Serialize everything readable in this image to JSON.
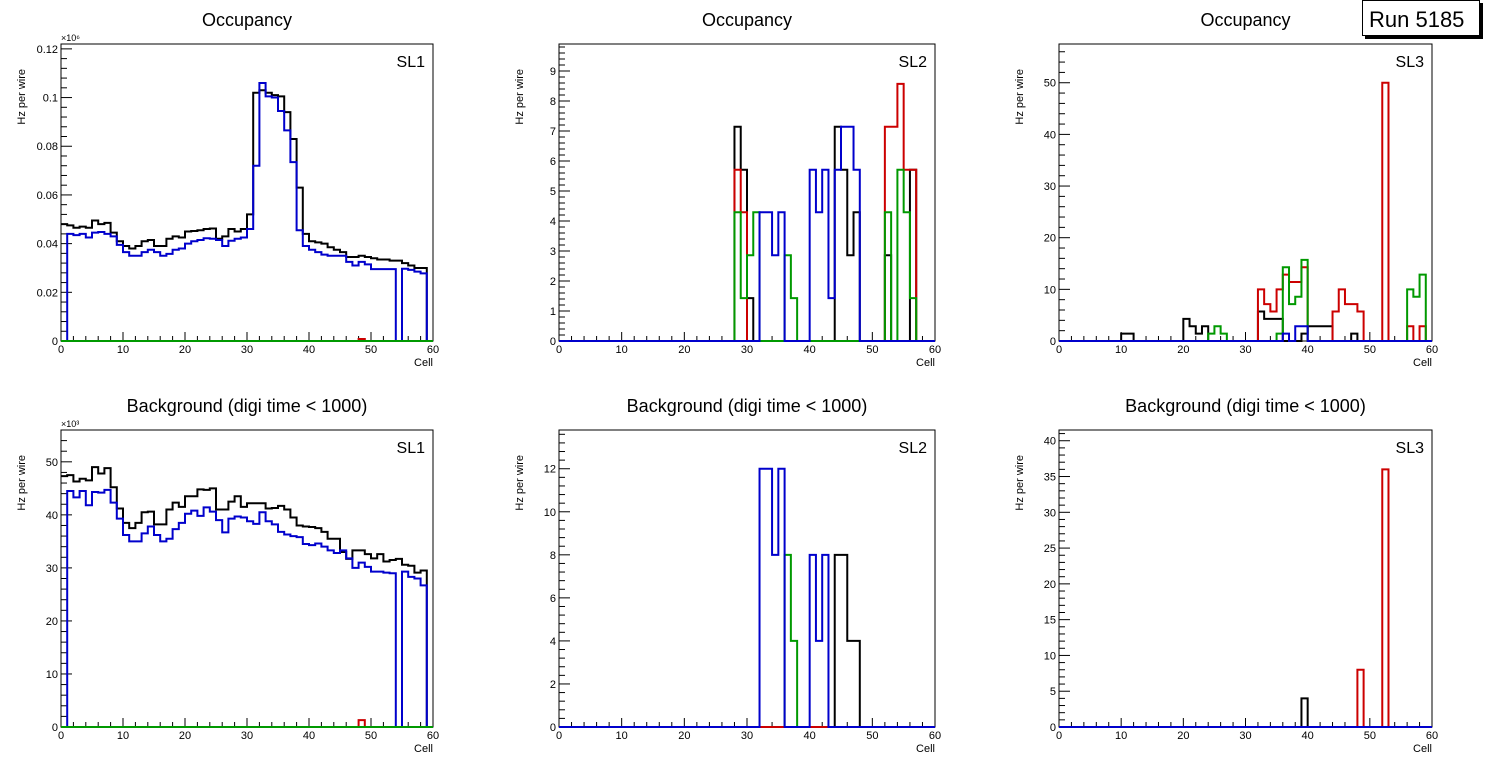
{
  "run_label": "Run 5185",
  "colors": {
    "black": "#000000",
    "red": "#cc0000",
    "green": "#009900",
    "blue": "#0000cc"
  },
  "chart_data": [
    {
      "type": "histogram-step",
      "title": "Occupancy",
      "label": "SL1",
      "xlabel": "Cell",
      "ylabel": "Hz per wire",
      "xlim": [
        0,
        60
      ],
      "ylim": [
        0,
        0.122
      ],
      "exponent": "×10⁶",
      "xticks": [
        0,
        10,
        20,
        30,
        40,
        50,
        60
      ],
      "yticks": [
        0,
        0.02,
        0.04,
        0.06,
        0.08,
        0.1,
        0.12
      ],
      "ytick_labels": [
        "0",
        "0.02",
        "0.04",
        "0.06",
        "0.08",
        "0.1",
        "0.12"
      ],
      "series": [
        {
          "name": "black",
          "color": "black",
          "values": [
            0.048,
            0.0475,
            0.0465,
            0.047,
            0.0465,
            0.0495,
            0.048,
            0.0485,
            0.0445,
            0.041,
            0.039,
            0.038,
            0.039,
            0.041,
            0.0415,
            0.039,
            0.039,
            0.042,
            0.043,
            0.0425,
            0.045,
            0.0452,
            0.0455,
            0.046,
            0.0462,
            0.042,
            0.043,
            0.046,
            0.045,
            0.046,
            0.052,
            0.102,
            0.103,
            0.102,
            0.101,
            0.1005,
            0.094,
            0.083,
            0.063,
            0.044,
            0.041,
            0.0405,
            0.04,
            0.0385,
            0.0375,
            0.0365,
            0.0345,
            0.0345,
            0.035,
            0.0345,
            0.034,
            0.0335,
            0.0335,
            0.033,
            0.033,
            0.032,
            0.031,
            0.03,
            0.03,
            0
          ]
        },
        {
          "name": "blue",
          "color": "blue",
          "values": [
            0,
            0.044,
            0.0435,
            0.044,
            0.0425,
            0.0445,
            0.0448,
            0.044,
            0.043,
            0.0395,
            0.0365,
            0.035,
            0.035,
            0.0365,
            0.0375,
            0.0365,
            0.035,
            0.0358,
            0.0375,
            0.038,
            0.04,
            0.041,
            0.0415,
            0.0422,
            0.042,
            0.0415,
            0.039,
            0.0412,
            0.042,
            0.0425,
            0.046,
            0.072,
            0.106,
            0.1005,
            0.1,
            0.0945,
            0.0865,
            0.0735,
            0.0455,
            0.039,
            0.0375,
            0.0365,
            0.0355,
            0.035,
            0.035,
            0.035,
            0.0325,
            0.031,
            0.0325,
            0.0315,
            0.0295,
            0.0295,
            0.0295,
            0.0295,
            0,
            0.0297,
            0.0292,
            0.0285,
            0.0278,
            0
          ]
        },
        {
          "name": "red",
          "color": "red",
          "values": [
            0,
            0,
            0,
            0,
            0,
            0,
            0,
            0,
            0,
            0,
            0,
            0,
            0,
            0,
            0,
            0,
            0,
            0,
            0,
            0,
            0,
            0,
            0,
            0,
            0,
            0,
            0,
            0,
            0,
            0,
            0,
            0,
            0,
            0,
            0,
            0,
            0,
            0,
            0,
            0,
            0,
            0,
            0,
            0,
            0,
            0,
            0,
            0,
            0.0008,
            0,
            0,
            0,
            0,
            0,
            0,
            0,
            0,
            0,
            0,
            0
          ]
        },
        {
          "name": "green",
          "color": "green",
          "values": [
            0,
            0,
            0,
            0,
            0,
            0,
            0,
            0,
            0,
            0,
            0,
            0,
            0,
            0,
            0,
            0,
            0,
            0,
            0,
            0,
            0,
            0,
            0,
            0,
            0,
            0,
            0,
            0,
            0,
            0,
            0,
            0,
            0,
            0,
            0,
            0,
            0,
            0,
            0,
            0,
            0,
            0,
            0,
            0,
            0,
            0,
            0,
            0,
            0,
            0,
            0,
            0,
            0,
            0,
            0,
            0,
            0,
            0,
            0,
            0
          ]
        }
      ]
    },
    {
      "type": "histogram-step",
      "title": "Occupancy",
      "label": "SL2",
      "xlabel": "Cell",
      "ylabel": "Hz per wire",
      "xlim": [
        0,
        60
      ],
      "ylim": [
        0,
        9.9
      ],
      "exponent": "",
      "xticks": [
        0,
        10,
        20,
        30,
        40,
        50,
        60
      ],
      "yticks": [
        0,
        1,
        2,
        3,
        4,
        5,
        6,
        7,
        8,
        9
      ],
      "ytick_labels": [
        "0",
        "1",
        "2",
        "3",
        "4",
        "5",
        "6",
        "7",
        "8",
        "9"
      ],
      "series": [
        {
          "name": "black",
          "color": "black",
          "bins": {
            "28": 7.14,
            "29": 5.71,
            "30": 1.43,
            "44": 7.14,
            "45": 5.71,
            "46": 2.86,
            "47": 4.29,
            "52": 2.86,
            "56": 5.71
          }
        },
        {
          "name": "red",
          "color": "red",
          "bins": {
            "28": 5.71,
            "29": 4.29,
            "52": 7.14,
            "53": 7.14,
            "54": 8.57,
            "55": 5.71,
            "56": 5.71
          }
        },
        {
          "name": "green",
          "color": "green",
          "bins": {
            "28": 4.29,
            "29": 1.43,
            "30": 2.86,
            "31": 4.29,
            "36": 2.86,
            "37": 1.43,
            "52": 4.29,
            "54": 5.71,
            "55": 4.29,
            "56": 1.43
          }
        },
        {
          "name": "blue",
          "color": "blue",
          "bins": {
            "32": 4.29,
            "33": 4.29,
            "34": 2.86,
            "35": 4.29,
            "40": 5.71,
            "41": 4.29,
            "42": 5.71,
            "43": 1.43,
            "44": 5.71,
            "45": 7.14,
            "46": 7.14,
            "47": 5.71
          }
        }
      ]
    },
    {
      "type": "histogram-step",
      "title": "Occupancy",
      "label": "SL3",
      "xlabel": "Cell",
      "ylabel": "Hz per wire",
      "xlim": [
        0,
        60
      ],
      "ylim": [
        0,
        57.5
      ],
      "exponent": "",
      "xticks": [
        0,
        10,
        20,
        30,
        40,
        50,
        60
      ],
      "yticks": [
        0,
        10,
        20,
        30,
        40,
        50
      ],
      "ytick_labels": [
        "0",
        "10",
        "20",
        "30",
        "40",
        "50"
      ],
      "series": [
        {
          "name": "black",
          "color": "black",
          "bins": {
            "10": 1.43,
            "11": 1.43,
            "20": 4.29,
            "21": 2.86,
            "22": 1.43,
            "23": 2.86,
            "32": 5.71,
            "33": 4.29,
            "34": 4.29,
            "35": 4.29,
            "39": 1.43,
            "40": 2.86,
            "41": 2.86,
            "42": 2.86,
            "43": 2.86,
            "47": 1.43
          }
        },
        {
          "name": "red",
          "color": "red",
          "bins": {
            "32": 10,
            "33": 7.14,
            "34": 5.71,
            "35": 10,
            "36": 12.86,
            "37": 11.43,
            "38": 11.43,
            "39": 14.29,
            "44": 5.71,
            "45": 10,
            "46": 7.14,
            "47": 7.14,
            "48": 5.71,
            "52": 50,
            "56": 2.86,
            "58": 2.86
          }
        },
        {
          "name": "green",
          "color": "green",
          "bins": {
            "24": 1.43,
            "25": 2.86,
            "26": 1.43,
            "35": 1.43,
            "36": 14.29,
            "37": 7.14,
            "38": 8.57,
            "39": 15.71,
            "56": 10,
            "57": 8.57,
            "58": 12.86
          }
        },
        {
          "name": "blue",
          "color": "blue",
          "bins": {
            "36": 1.43,
            "38": 2.86,
            "39": 2.86
          }
        }
      ]
    },
    {
      "type": "histogram-step",
      "title": "Background (digi time < 1000)",
      "label": "SL1",
      "xlabel": "Cell",
      "ylabel": "Hz per wire",
      "xlim": [
        0,
        60
      ],
      "ylim": [
        0,
        56
      ],
      "exponent": "×10³",
      "xticks": [
        0,
        10,
        20,
        30,
        40,
        50,
        60
      ],
      "yticks": [
        0,
        10,
        20,
        30,
        40,
        50
      ],
      "ytick_labels": [
        "0",
        "10",
        "20",
        "30",
        "40",
        "50"
      ],
      "series": [
        {
          "name": "black",
          "color": "black",
          "values": [
            47.3,
            47.5,
            46.3,
            46.8,
            46.5,
            49.0,
            47.8,
            48.8,
            45.2,
            41.2,
            38.5,
            37.5,
            38.5,
            40.5,
            40.6,
            38.2,
            38.2,
            41.0,
            42.3,
            41.5,
            43.5,
            43.5,
            44.8,
            44.7,
            45.0,
            41.0,
            41.0,
            42.5,
            43.5,
            41.5,
            42.2,
            42.2,
            42.2,
            41.2,
            41.3,
            41.7,
            41.0,
            39.5,
            38.0,
            37.8,
            37.7,
            37.5,
            36.8,
            35.5,
            35.5,
            33.0,
            31.7,
            33.3,
            33.3,
            32.6,
            31.8,
            32.6,
            31.2,
            31.5,
            31.7,
            30.6,
            30.4,
            29.1,
            29.5,
            0
          ]
        },
        {
          "name": "blue",
          "color": "blue",
          "values": [
            0,
            44.5,
            43.3,
            44.5,
            41.8,
            44.3,
            44.2,
            44.7,
            42.3,
            39.3,
            36.2,
            35.0,
            35.0,
            36.5,
            37.8,
            36.2,
            35.0,
            35.5,
            37.3,
            38.5,
            40.2,
            40.8,
            39.8,
            41.4,
            40.6,
            39.0,
            36.7,
            39.3,
            39.7,
            39.5,
            38.8,
            38.3,
            40.5,
            38.8,
            38.2,
            36.8,
            36.3,
            36.0,
            35.8,
            34.5,
            34.3,
            34.6,
            34.0,
            33.3,
            32.8,
            33.3,
            31.8,
            30.0,
            31.0,
            30.2,
            29.3,
            29.3,
            29.1,
            29.0,
            0,
            29.3,
            28.3,
            28.0,
            26.7,
            0
          ]
        },
        {
          "name": "red",
          "color": "red",
          "values": [
            0,
            0,
            0,
            0,
            0,
            0,
            0,
            0,
            0,
            0,
            0,
            0,
            0,
            0,
            0,
            0,
            0,
            0,
            0,
            0,
            0,
            0,
            0,
            0,
            0,
            0,
            0,
            0,
            0,
            0,
            0,
            0,
            0,
            0,
            0,
            0,
            0,
            0,
            0,
            0,
            0,
            0,
            0,
            0,
            0,
            0,
            0,
            0,
            1.3,
            0,
            0,
            0,
            0,
            0,
            0,
            0,
            0,
            0,
            0,
            0
          ]
        },
        {
          "name": "green",
          "color": "green",
          "values": [
            0,
            0,
            0,
            0,
            0,
            0,
            0,
            0,
            0,
            0,
            0,
            0,
            0,
            0,
            0,
            0,
            0,
            0,
            0,
            0,
            0,
            0,
            0,
            0,
            0,
            0,
            0,
            0,
            0,
            0,
            0,
            0,
            0,
            0,
            0,
            0,
            0,
            0,
            0,
            0,
            0,
            0,
            0,
            0,
            0,
            0,
            0,
            0,
            0,
            0,
            0,
            0,
            0,
            0,
            0,
            0,
            0,
            0,
            0,
            0
          ]
        }
      ]
    },
    {
      "type": "histogram-step",
      "title": "Background (digi time < 1000)",
      "label": "SL2",
      "xlabel": "Cell",
      "ylabel": "Hz per wire",
      "xlim": [
        0,
        60
      ],
      "ylim": [
        0,
        13.8
      ],
      "exponent": "",
      "xticks": [
        0,
        10,
        20,
        30,
        40,
        50,
        60
      ],
      "yticks": [
        0,
        2,
        4,
        6,
        8,
        10,
        12
      ],
      "ytick_labels": [
        "0",
        "2",
        "4",
        "6",
        "8",
        "10",
        "12"
      ],
      "series": [
        {
          "name": "black",
          "color": "black",
          "bins": {
            "44": 8,
            "45": 8,
            "46": 4,
            "47": 4
          }
        },
        {
          "name": "green",
          "color": "green",
          "bins": {
            "36": 8,
            "37": 4
          }
        },
        {
          "name": "red",
          "color": "red",
          "bins": {}
        },
        {
          "name": "blue",
          "color": "blue",
          "bins": {
            "32": 12,
            "33": 12,
            "34": 8,
            "35": 12,
            "40": 8,
            "41": 4,
            "42": 8
          }
        }
      ]
    },
    {
      "type": "histogram-step",
      "title": "Background (digi time < 1000)",
      "label": "SL3",
      "xlabel": "Cell",
      "ylabel": "Hz per wire",
      "xlim": [
        0,
        60
      ],
      "ylim": [
        0,
        41.5
      ],
      "exponent": "",
      "xticks": [
        0,
        10,
        20,
        30,
        40,
        50,
        60
      ],
      "yticks": [
        0,
        5,
        10,
        15,
        20,
        25,
        30,
        35,
        40
      ],
      "ytick_labels": [
        "0",
        "5",
        "10",
        "15",
        "20",
        "25",
        "30",
        "35",
        "40"
      ],
      "series": [
        {
          "name": "black",
          "color": "black",
          "bins": {
            "39": 4
          }
        },
        {
          "name": "red",
          "color": "red",
          "bins": {
            "48": 8,
            "52": 36
          }
        },
        {
          "name": "green",
          "color": "green",
          "bins": {}
        },
        {
          "name": "blue",
          "color": "blue",
          "bins": {}
        }
      ]
    }
  ]
}
